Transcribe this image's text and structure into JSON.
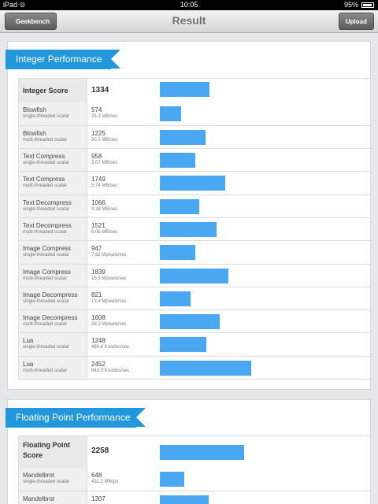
{
  "status": {
    "carrier": "iPad",
    "time": "10:05",
    "battery": "95%",
    "battery_level": 0.95
  },
  "nav": {
    "title": "Result",
    "back_label": "Geekbench",
    "upload_label": "Upload"
  },
  "integer": {
    "heading": "Integer Performance",
    "score_label": "Integer Score",
    "score": "1334",
    "score_value": 1334,
    "rows": [
      {
        "name": "Blowfish",
        "sub": "single-threaded scalar",
        "score": "574",
        "rate": "25.3 MB/sec",
        "value": 574
      },
      {
        "name": "Blowfish",
        "sub": "multi-threaded scalar",
        "score": "1225",
        "rate": "50.2 MB/sec",
        "value": 1225
      },
      {
        "name": "Text Compress",
        "sub": "single-threaded scalar",
        "score": "958",
        "rate": "3.07 MB/sec",
        "value": 958
      },
      {
        "name": "Text Compress",
        "sub": "multi-threaded scalar",
        "score": "1749",
        "rate": "5.74 MB/sec",
        "value": 1749
      },
      {
        "name": "Text Decompress",
        "sub": "single-threaded scalar",
        "score": "1066",
        "rate": "4.38 MB/sec",
        "value": 1066
      },
      {
        "name": "Text Decompress",
        "sub": "multi-threaded scalar",
        "score": "1521",
        "rate": "6.06 MB/sec",
        "value": 1521
      },
      {
        "name": "Image Compress",
        "sub": "single-threaded scalar",
        "score": "947",
        "rate": "7.82 Mpixels/sec",
        "value": 947
      },
      {
        "name": "Image Compress",
        "sub": "multi-threaded scalar",
        "score": "1839",
        "rate": "15.5 Mpixels/sec",
        "value": 1839
      },
      {
        "name": "Image Decompress",
        "sub": "single-threaded scalar",
        "score": "821",
        "rate": "13.8 Mpixels/sec",
        "value": 821
      },
      {
        "name": "Image Decompress",
        "sub": "multi-threaded scalar",
        "score": "1608",
        "rate": "26.2 Mpixels/sec",
        "value": 1608
      },
      {
        "name": "Lua",
        "sub": "single-threaded scalar",
        "score": "1248",
        "rate": "480.6 Knodes/sec",
        "value": 1248
      },
      {
        "name": "Lua",
        "sub": "multi-threaded scalar",
        "score": "2452",
        "rate": "943.3 Knodes/sec",
        "value": 2452
      }
    ]
  },
  "floating": {
    "heading": "Floating Point Performance",
    "score_label": "Floating Point Score",
    "score": "2258",
    "score_value": 2258,
    "rows": [
      {
        "name": "Mandelbrot",
        "sub": "single-threaded scalar",
        "score": "648",
        "rate": "431.2 Mflops",
        "value": 648
      },
      {
        "name": "Mandelbrot",
        "sub": "",
        "score": "1307",
        "rate": "",
        "value": 1307
      }
    ]
  },
  "colors": {
    "accent": "#2397dc",
    "bar": "#4aa8f3"
  }
}
